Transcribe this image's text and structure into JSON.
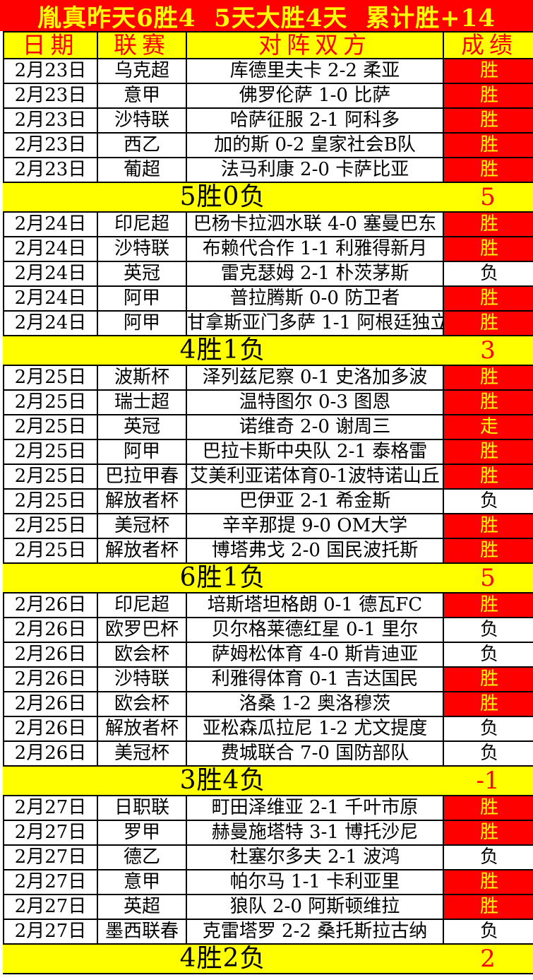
{
  "banner": {
    "text": "胤真昨天6胜4  5天大胜4天  累计胜+14"
  },
  "colors": {
    "red": "#ff0000",
    "yellow": "#ffff00",
    "win_cell_bg": "#ff0000",
    "win_cell_text": "#ffff00",
    "loss_cell_text": "#000000",
    "summary_value_text": "#ff0000"
  },
  "header": {
    "date": "日期",
    "league": "联赛",
    "match": "对阵双方",
    "result": "成绩"
  },
  "sections": [
    {
      "rows": [
        {
          "date": "2月23日",
          "league": "乌克超",
          "match": "库德里夫卡 2-2 柔亚",
          "result": "胜",
          "type": "win"
        },
        {
          "date": "2月23日",
          "league": "意甲",
          "match": "佛罗伦萨 1-0 比萨",
          "result": "胜",
          "type": "win"
        },
        {
          "date": "2月23日",
          "league": "沙特联",
          "match": "哈萨征服 2-1 阿科多",
          "result": "胜",
          "type": "win"
        },
        {
          "date": "2月23日",
          "league": "西乙",
          "match": "加的斯 0-2 皇家社会B队",
          "result": "胜",
          "type": "win"
        },
        {
          "date": "2月23日",
          "league": "葡超",
          "match": "法马利康 2-0 卡萨比亚",
          "result": "胜",
          "type": "win"
        }
      ],
      "summary": {
        "label": "5胜0负",
        "value": "5"
      }
    },
    {
      "rows": [
        {
          "date": "2月24日",
          "league": "印尼超",
          "match": "巴杨卡拉泗水联 4-0 塞曼巴东",
          "result": "胜",
          "type": "win"
        },
        {
          "date": "2月24日",
          "league": "沙特联",
          "match": "布赖代合作 1-1 利雅得新月",
          "result": "胜",
          "type": "win"
        },
        {
          "date": "2月24日",
          "league": "英冠",
          "match": "雷克瑟姆 2-1 朴茨茅斯",
          "result": "负",
          "type": "loss"
        },
        {
          "date": "2月24日",
          "league": "阿甲",
          "match": "普拉腾斯 0-0 防卫者",
          "result": "胜",
          "type": "win"
        },
        {
          "date": "2月24日",
          "league": "阿甲",
          "match": "甘拿斯亚门多萨 1-1 阿根廷独立",
          "result": "胜",
          "type": "win"
        }
      ],
      "summary": {
        "label": "4胜1负",
        "value": "3"
      }
    },
    {
      "rows": [
        {
          "date": "2月25日",
          "league": "波斯杯",
          "match": "泽列兹尼察 0-1 史洛加多波",
          "result": "胜",
          "type": "win"
        },
        {
          "date": "2月25日",
          "league": "瑞士超",
          "match": "温特图尔 0-3 图恩",
          "result": "胜",
          "type": "win"
        },
        {
          "date": "2月25日",
          "league": "英冠",
          "match": "诺维奇 2-0 谢周三",
          "result": "走",
          "type": "push"
        },
        {
          "date": "2月25日",
          "league": "阿甲",
          "match": "巴拉卡斯中央队 2-1 泰格雷",
          "result": "胜",
          "type": "win"
        },
        {
          "date": "2月25日",
          "league": "巴拉甲春",
          "match": "艾美利亚诺体育0-1波特诺山丘",
          "result": "胜",
          "type": "win"
        },
        {
          "date": "2月25日",
          "league": "解放者杯",
          "match": "巴伊亚 2-1 希金斯",
          "result": "负",
          "type": "loss"
        },
        {
          "date": "2月25日",
          "league": "美冠杯",
          "match": "辛辛那提 9-0 OM大学",
          "result": "胜",
          "type": "win"
        },
        {
          "date": "2月25日",
          "league": "解放者杯",
          "match": "博塔弗戈 2-0 国民波托斯",
          "result": "胜",
          "type": "win"
        }
      ],
      "summary": {
        "label": "6胜1负",
        "value": "5"
      }
    },
    {
      "rows": [
        {
          "date": "2月26日",
          "league": "印尼超",
          "match": "培斯塔坦格朗 0-1 德瓦FC",
          "result": "胜",
          "type": "win"
        },
        {
          "date": "2月26日",
          "league": "欧罗巴杯",
          "match": "贝尔格莱德红星 0-1 里尔",
          "result": "负",
          "type": "loss"
        },
        {
          "date": "2月26日",
          "league": "欧会杯",
          "match": "萨姆松体育 4-0 斯肯迪亚",
          "result": "负",
          "type": "loss"
        },
        {
          "date": "2月26日",
          "league": "沙特联",
          "match": "利雅得体育 0-1 吉达国民",
          "result": "胜",
          "type": "win"
        },
        {
          "date": "2月26日",
          "league": "欧会杯",
          "match": "洛桑 1-2 奥洛穆茨",
          "result": "胜",
          "type": "win"
        },
        {
          "date": "2月26日",
          "league": "解放者杯",
          "match": "亚松森瓜拉尼 1-2 尤文提度",
          "result": "负",
          "type": "loss"
        },
        {
          "date": "2月26日",
          "league": "美冠杯",
          "match": "费城联合 7-0 国防部队",
          "result": "负",
          "type": "loss"
        }
      ],
      "summary": {
        "label": "3胜4负",
        "value": "-1"
      }
    },
    {
      "rows": [
        {
          "date": "2月27日",
          "league": "日职联",
          "match": "町田泽维亚 2-1 千叶市原",
          "result": "胜",
          "type": "win"
        },
        {
          "date": "2月27日",
          "league": "罗甲",
          "match": "赫曼施塔特 3-1 博托沙尼",
          "result": "胜",
          "type": "win"
        },
        {
          "date": "2月27日",
          "league": "德乙",
          "match": "杜塞尔多夫 2-1 波鸿",
          "result": "负",
          "type": "loss"
        },
        {
          "date": "2月27日",
          "league": "意甲",
          "match": "帕尔马 1-1 卡利亚里",
          "result": "胜",
          "type": "win"
        },
        {
          "date": "2月27日",
          "league": "英超",
          "match": "狼队 2-0 阿斯顿维拉",
          "result": "胜",
          "type": "win"
        },
        {
          "date": "2月27日",
          "league": "墨西联春",
          "match": "克雷塔罗 2-2 桑托斯拉古纳",
          "result": "负",
          "type": "loss"
        }
      ],
      "summary": {
        "label": "4胜2负",
        "value": "2"
      }
    }
  ]
}
